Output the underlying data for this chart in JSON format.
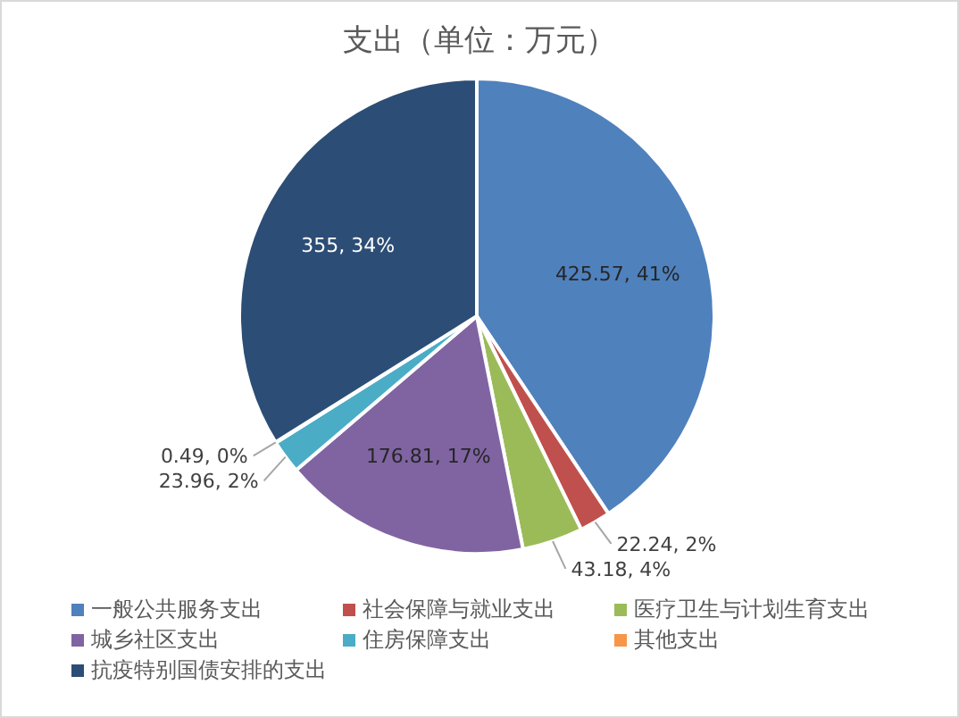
{
  "chart_data": {
    "type": "pie",
    "title": "支出（单位：万元）",
    "categories": [
      "一般公共服务支出",
      "社会保障与就业支出",
      "医疗卫生与计划生育支出",
      "城乡社区支出",
      "住房保障支出",
      "其他支出",
      "抗疫特别国债安排的支出"
    ],
    "values": [
      425.57,
      22.24,
      43.18,
      176.81,
      23.96,
      0.49,
      355
    ],
    "colors": [
      "#4f81bd",
      "#c0504d",
      "#9bbb59",
      "#8064a2",
      "#4bacc6",
      "#f79646",
      "#2c4d75"
    ],
    "value_labels": [
      "425.57, 41%",
      "22.24, 2%",
      "43.18, 4%",
      "176.81, 17%",
      "23.96, 2%",
      "0.49, 0%",
      "355, 34%"
    ],
    "legend": "bottom"
  }
}
